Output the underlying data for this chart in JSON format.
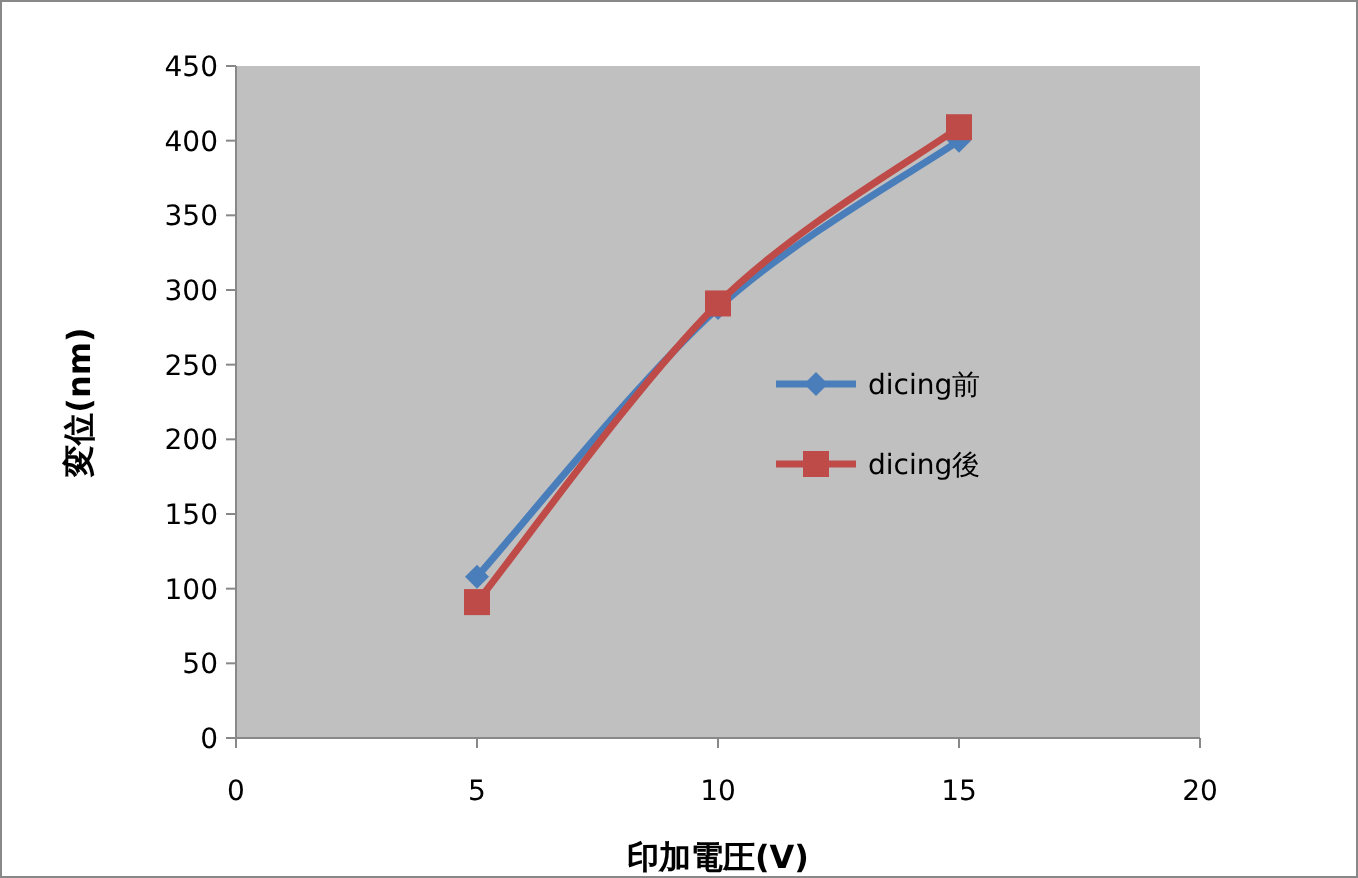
{
  "chart_data": {
    "type": "line",
    "xlabel": "印加電圧(V)",
    "ylabel": "変位(nm)",
    "x": [
      5,
      10,
      15
    ],
    "xlim": [
      0,
      20
    ],
    "xticks": [
      0,
      5,
      10,
      15,
      20
    ],
    "ylim": [
      0,
      450
    ],
    "yticks": [
      0,
      50,
      100,
      150,
      200,
      250,
      300,
      350,
      400,
      450
    ],
    "legend": "right",
    "grid": false,
    "series": [
      {
        "name": "dicing前",
        "color": "#4a7ebb",
        "values": [
          108,
          288,
          400
        ],
        "marker": "diamond"
      },
      {
        "name": "dicing後",
        "color": "#be4b48",
        "values": [
          91,
          291,
          409
        ],
        "marker": "square"
      }
    ]
  }
}
